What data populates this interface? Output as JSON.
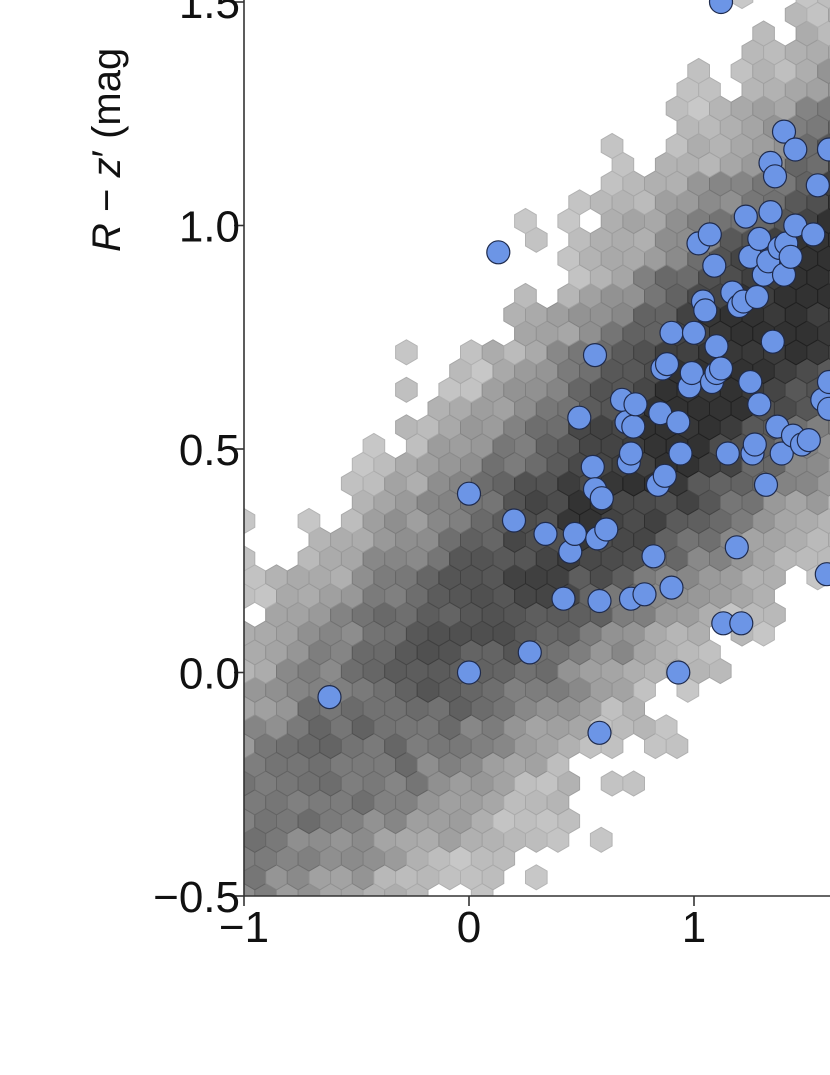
{
  "chart_data": {
    "type": "scatter",
    "ylabel": {
      "a": "R",
      "minus": " − ",
      "b": "z",
      "prime": "′",
      "units": " (mag"
    },
    "xlim": [
      -1,
      1.6
    ],
    "ylim": [
      -0.5,
      1.53
    ],
    "xticks": [
      {
        "value": -1,
        "label": "−1"
      },
      {
        "value": 0,
        "label": "0"
      },
      {
        "value": 1,
        "label": "1"
      }
    ],
    "yticks": [
      {
        "value": -0.5,
        "label": "−0.5"
      },
      {
        "value": 0.0,
        "label": "0.0"
      },
      {
        "value": 0.5,
        "label": "0.5"
      },
      {
        "value": 1.0,
        "label": "1.0"
      },
      {
        "value": 1.5,
        "label": "1.5"
      }
    ],
    "colors": {
      "points": "#6c95e6",
      "point_edge": "#1f2b4d",
      "hex_dark": "#2e2e2e",
      "hex_light": "#c8c8c8"
    },
    "background": {
      "kind": "hexbin density (greyscale)",
      "ridge": {
        "x": [
          -1,
          1.5
        ],
        "y": [
          -0.35,
          0.85
        ]
      },
      "spread_y": 0.45
    },
    "series": [
      {
        "points": [
          [
            -0.62,
            -0.055
          ],
          [
            0.0,
            0.0
          ],
          [
            0.13,
            0.94
          ],
          [
            0.0,
            0.4
          ],
          [
            0.2,
            0.34
          ],
          [
            0.27,
            0.045
          ],
          [
            0.34,
            0.31
          ],
          [
            0.42,
            0.165
          ],
          [
            0.45,
            0.27
          ],
          [
            0.47,
            0.31
          ],
          [
            0.49,
            0.57
          ],
          [
            0.55,
            0.46
          ],
          [
            0.56,
            0.41
          ],
          [
            0.57,
            0.3
          ],
          [
            0.58,
            0.16
          ],
          [
            0.59,
            0.39
          ],
          [
            0.58,
            -0.135
          ],
          [
            0.56,
            0.71
          ],
          [
            0.61,
            0.32
          ],
          [
            0.68,
            0.61
          ],
          [
            0.7,
            0.56
          ],
          [
            0.71,
            0.47
          ],
          [
            0.72,
            0.49
          ],
          [
            0.73,
            0.55
          ],
          [
            0.74,
            0.6
          ],
          [
            0.72,
            0.165
          ],
          [
            0.78,
            0.175
          ],
          [
            0.82,
            0.26
          ],
          [
            0.84,
            0.42
          ],
          [
            0.85,
            0.58
          ],
          [
            0.86,
            0.68
          ],
          [
            0.87,
            0.44
          ],
          [
            0.88,
            0.69
          ],
          [
            0.9,
            0.76
          ],
          [
            0.9,
            0.19
          ],
          [
            0.93,
            0.56
          ],
          [
            0.94,
            0.49
          ],
          [
            0.93,
            0.0
          ],
          [
            0.98,
            0.64
          ],
          [
            0.99,
            0.67
          ],
          [
            1.0,
            0.76
          ],
          [
            1.02,
            0.96
          ],
          [
            1.04,
            0.83
          ],
          [
            1.05,
            0.81
          ],
          [
            1.07,
            0.98
          ],
          [
            1.08,
            0.65
          ],
          [
            1.09,
            0.91
          ],
          [
            1.1,
            0.67
          ],
          [
            1.1,
            0.73
          ],
          [
            1.12,
            0.68
          ],
          [
            1.13,
            0.11
          ],
          [
            1.15,
            0.49
          ],
          [
            1.17,
            0.85
          ],
          [
            1.2,
            0.82
          ],
          [
            1.21,
            0.11
          ],
          [
            1.22,
            0.83
          ],
          [
            1.23,
            1.02
          ],
          [
            1.25,
            0.65
          ],
          [
            1.25,
            0.93
          ],
          [
            1.26,
            0.49
          ],
          [
            1.27,
            0.51
          ],
          [
            1.28,
            0.84
          ],
          [
            1.29,
            0.6
          ],
          [
            1.29,
            0.97
          ],
          [
            1.31,
            0.89
          ],
          [
            1.32,
            0.42
          ],
          [
            1.33,
            0.92
          ],
          [
            1.34,
            1.03
          ],
          [
            1.35,
            0.74
          ],
          [
            1.37,
            0.55
          ],
          [
            1.38,
            0.95
          ],
          [
            1.39,
            0.49
          ],
          [
            1.4,
            0.89
          ],
          [
            1.41,
            0.96
          ],
          [
            1.43,
            0.93
          ],
          [
            1.44,
            0.53
          ],
          [
            1.45,
            1.0
          ],
          [
            1.48,
            0.51
          ],
          [
            1.51,
            0.52
          ],
          [
            1.53,
            0.98
          ],
          [
            1.55,
            1.09
          ],
          [
            1.57,
            0.61
          ],
          [
            1.59,
            0.22
          ],
          [
            1.6,
            0.65
          ],
          [
            1.6,
            0.59
          ],
          [
            1.6,
            1.17
          ],
          [
            1.19,
            0.28
          ],
          [
            1.34,
            1.14
          ],
          [
            1.36,
            1.11
          ],
          [
            1.4,
            1.21
          ],
          [
            1.45,
            1.17
          ],
          [
            1.12,
            1.5
          ]
        ]
      }
    ]
  }
}
